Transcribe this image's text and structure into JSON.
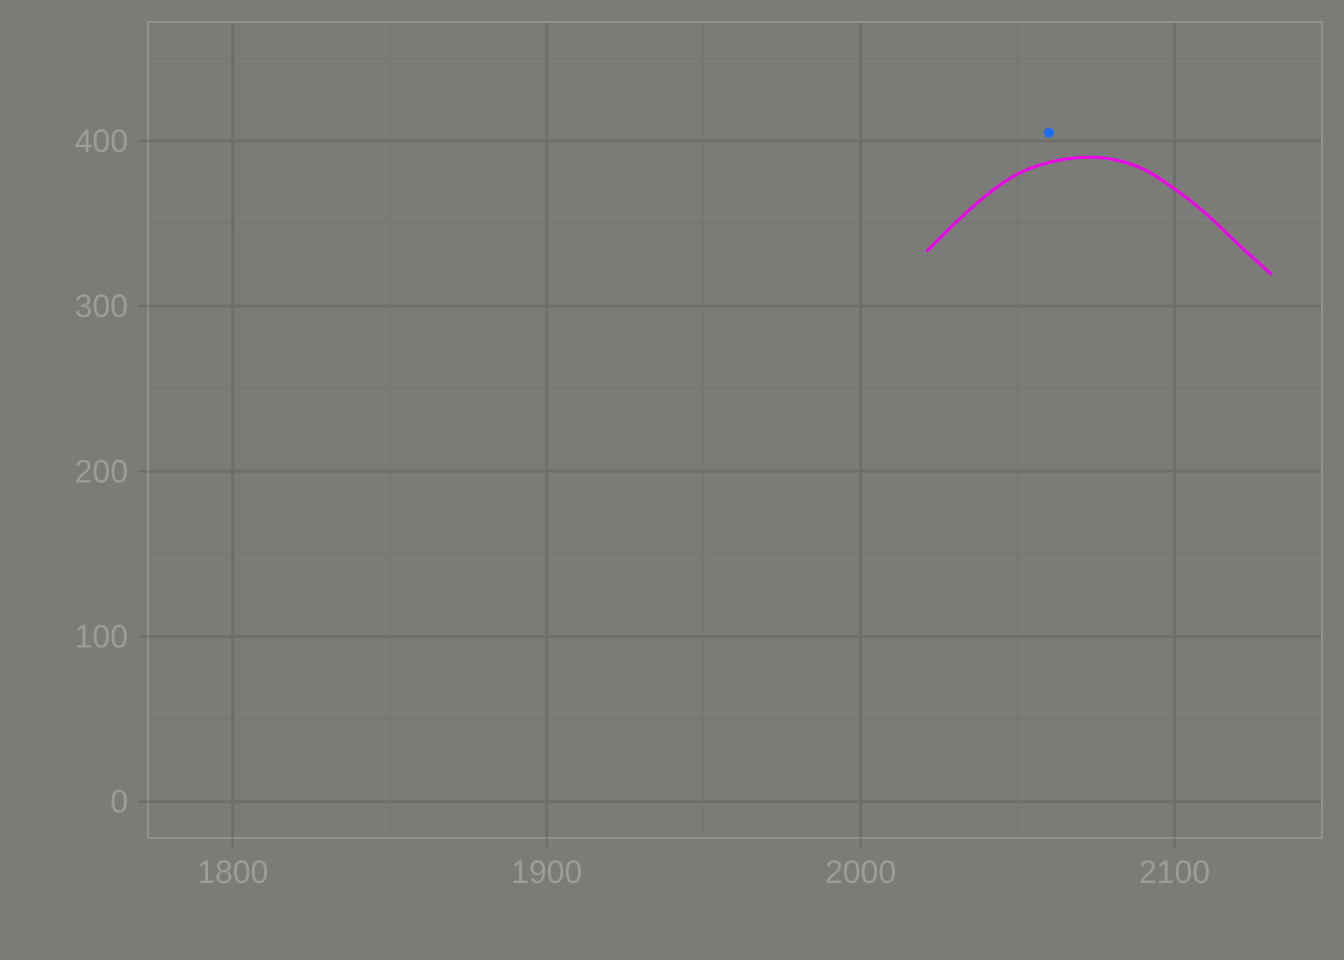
{
  "chart_data": {
    "type": "line",
    "title": "",
    "xlabel": "",
    "ylabel": "",
    "xlim": [
      1773,
      2147
    ],
    "ylim": [
      -22,
      472
    ],
    "x_ticks": [
      1800,
      1900,
      2000,
      2100
    ],
    "x_minor_ticks": [
      1850,
      1950,
      2050
    ],
    "y_ticks": [
      0,
      100,
      200,
      300,
      400
    ],
    "y_minor_ticks": [
      50,
      150,
      250,
      350,
      450
    ],
    "x_tick_labels": [
      "1800",
      "1900",
      "2000",
      "2100"
    ],
    "y_tick_labels": [
      "0",
      "100",
      "200",
      "300",
      "400"
    ],
    "grid": true,
    "legend": "none",
    "series": [
      {
        "kind": "line",
        "color": "#ee00ee",
        "x": [
          2021,
          2030,
          2040,
          2050,
          2060,
          2070,
          2080,
          2090,
          2100,
          2110,
          2120,
          2131
        ],
        "y": [
          333,
          350,
          367,
          380,
          387,
          390,
          389,
          383,
          371,
          356,
          338,
          319
        ]
      },
      {
        "kind": "point",
        "color": "#1a6ef5",
        "x": [
          2060
        ],
        "y": [
          405
        ]
      }
    ]
  },
  "colors": {
    "background": "#7b7c77",
    "panel_border": "#9a9b96",
    "major_grid": "#6e6f6b",
    "minor_grid": "#757672",
    "tick_text": "#9c9d98"
  }
}
